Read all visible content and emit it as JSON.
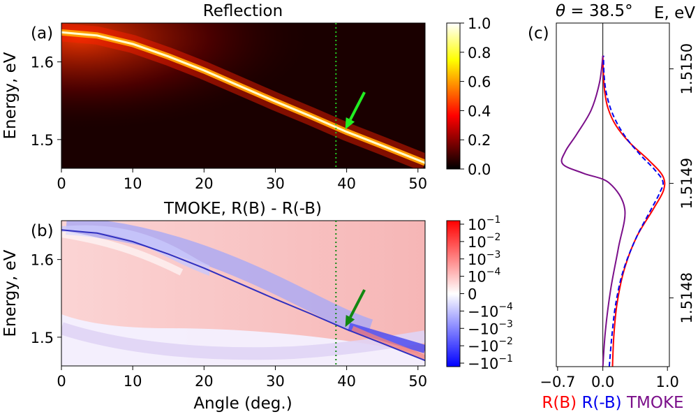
{
  "chart_data": [
    {
      "id": "a",
      "type": "heatmap",
      "panel_label": "(a)",
      "title": "Reflection",
      "xlabel": "",
      "ylabel": "Energy, eV",
      "xlim": [
        0,
        51
      ],
      "ylim": [
        1.463,
        1.65
      ],
      "x_ticks": [
        0,
        10,
        20,
        30,
        40,
        50
      ],
      "y_ticks": [
        1.5,
        1.6
      ],
      "y_tick_labels": [
        "1.5",
        "1.6"
      ],
      "colormap": "hot",
      "colorbar": {
        "range": [
          0,
          1
        ],
        "ticks": [
          0.0,
          0.2,
          0.4,
          0.6,
          0.8,
          1.0
        ],
        "tick_labels": [
          "0.0",
          "0.2",
          "0.4",
          "0.6",
          "0.8",
          "1.0"
        ]
      },
      "vline": {
        "x": 38.5,
        "color": "#22cc22",
        "style": "dotted"
      },
      "arrow": {
        "from": [
          42.5,
          1.561
        ],
        "to": [
          39.8,
          1.513
        ],
        "color": "#22ee22"
      },
      "resonance_curve": {
        "x": [
          0,
          5,
          10,
          15,
          20,
          25,
          30,
          35,
          40,
          45,
          51
        ],
        "y": [
          1.638,
          1.634,
          1.623,
          1.607,
          1.589,
          1.569,
          1.549,
          1.53,
          1.51,
          1.492,
          1.47
        ]
      }
    },
    {
      "id": "b",
      "type": "heatmap",
      "panel_label": "(b)",
      "title": "TMOKE, R(B) - R(-B)",
      "xlabel": "Angle (deg.)",
      "ylabel": "Energy, eV",
      "xlim": [
        0,
        51
      ],
      "ylim": [
        1.463,
        1.65
      ],
      "x_ticks": [
        0,
        10,
        20,
        30,
        40,
        50
      ],
      "y_ticks": [
        1.5,
        1.6
      ],
      "y_tick_labels": [
        "1.5",
        "1.6"
      ],
      "colormap": "bwr (symlog)",
      "colorbar": {
        "tick_labels": [
          {
            "base": "10",
            "exp": "−1"
          },
          {
            "base": "10",
            "exp": "−2"
          },
          {
            "base": "10",
            "exp": "−3"
          },
          {
            "base": "10",
            "exp": "−4"
          },
          {
            "base": "0",
            "exp": ""
          },
          {
            "base": "−10",
            "exp": "−4"
          },
          {
            "base": "−10",
            "exp": "−3"
          },
          {
            "base": "−10",
            "exp": "−2"
          },
          {
            "base": "−10",
            "exp": "−1"
          }
        ]
      },
      "vline": {
        "x": 38.5,
        "color": "#118811",
        "style": "dotted"
      },
      "arrow": {
        "from": [
          42.5,
          1.561
        ],
        "to": [
          39.8,
          1.513
        ],
        "color": "#118811"
      }
    },
    {
      "id": "c",
      "type": "line",
      "panel_label": "(c)",
      "title": "θ = 38.5°",
      "title_theta": "θ",
      "title_value": " = 38.5°",
      "ylabel": "E, eV",
      "xlim": [
        -0.72,
        1.03
      ],
      "ylim": [
        1.51474,
        1.51504
      ],
      "x_ticks": [
        -0.7,
        0.0,
        1.0
      ],
      "x_tick_labels": [
        "−0.7",
        "0.0",
        "1.0"
      ],
      "y_ticks": [
        1.5148,
        1.5149,
        1.515
      ],
      "y_tick_labels": [
        "1.5148",
        "1.5149",
        "1.5150"
      ],
      "series": [
        {
          "name": "R(B)",
          "color": "#ff0000",
          "dash": "solid",
          "x": [
            0.15,
            0.17,
            0.22,
            0.33,
            0.52,
            0.78,
            0.94,
            0.93,
            0.72,
            0.42,
            0.2,
            0.08,
            0.03,
            0.01,
            0.0
          ],
          "y": [
            1.51474,
            1.5147667,
            1.514795,
            1.5148245,
            1.5148529,
            1.5148775,
            1.5148941,
            1.5149062,
            1.5149197,
            1.5149353,
            1.5149508,
            1.5149656,
            1.5149799,
            1.5149943,
            1.5150115
          ]
        },
        {
          "name": "R(-B)",
          "color": "#0000ee",
          "dash": "dashed",
          "x": [
            0.1,
            0.14,
            0.2,
            0.32,
            0.52,
            0.74,
            0.88,
            0.93,
            0.8,
            0.58,
            0.34,
            0.16,
            0.06,
            0.02,
            0.01
          ],
          "y": [
            1.51474,
            1.5147667,
            1.514795,
            1.5148245,
            1.5148529,
            1.5148766,
            1.5148917,
            1.5149015,
            1.5149121,
            1.514925,
            1.5149414,
            1.5149595,
            1.5149773,
            1.5149941,
            1.5150115
          ]
        },
        {
          "name": "TMOKE",
          "color": "#7b0f8a",
          "dash": "solid",
          "x": [
            0.0,
            0.04,
            0.12,
            0.24,
            0.34,
            0.1,
            -0.3,
            -0.62,
            -0.58,
            -0.4,
            -0.18,
            -0.05,
            0.0
          ],
          "y": [
            1.51474,
            1.5147715,
            1.514807,
            1.5148435,
            1.5148775,
            1.5149003,
            1.5149088,
            1.5149168,
            1.5149279,
            1.5149433,
            1.5149641,
            1.5149883,
            1.5150115
          ]
        }
      ],
      "zero_line": {
        "x": 0
      },
      "legend": [
        {
          "label": "R(B)",
          "color": "#ff0000"
        },
        {
          "label": "R(-B)",
          "color": "#0000ee"
        },
        {
          "label": "TMOKE",
          "color": "#7b0f8a"
        }
      ]
    }
  ]
}
